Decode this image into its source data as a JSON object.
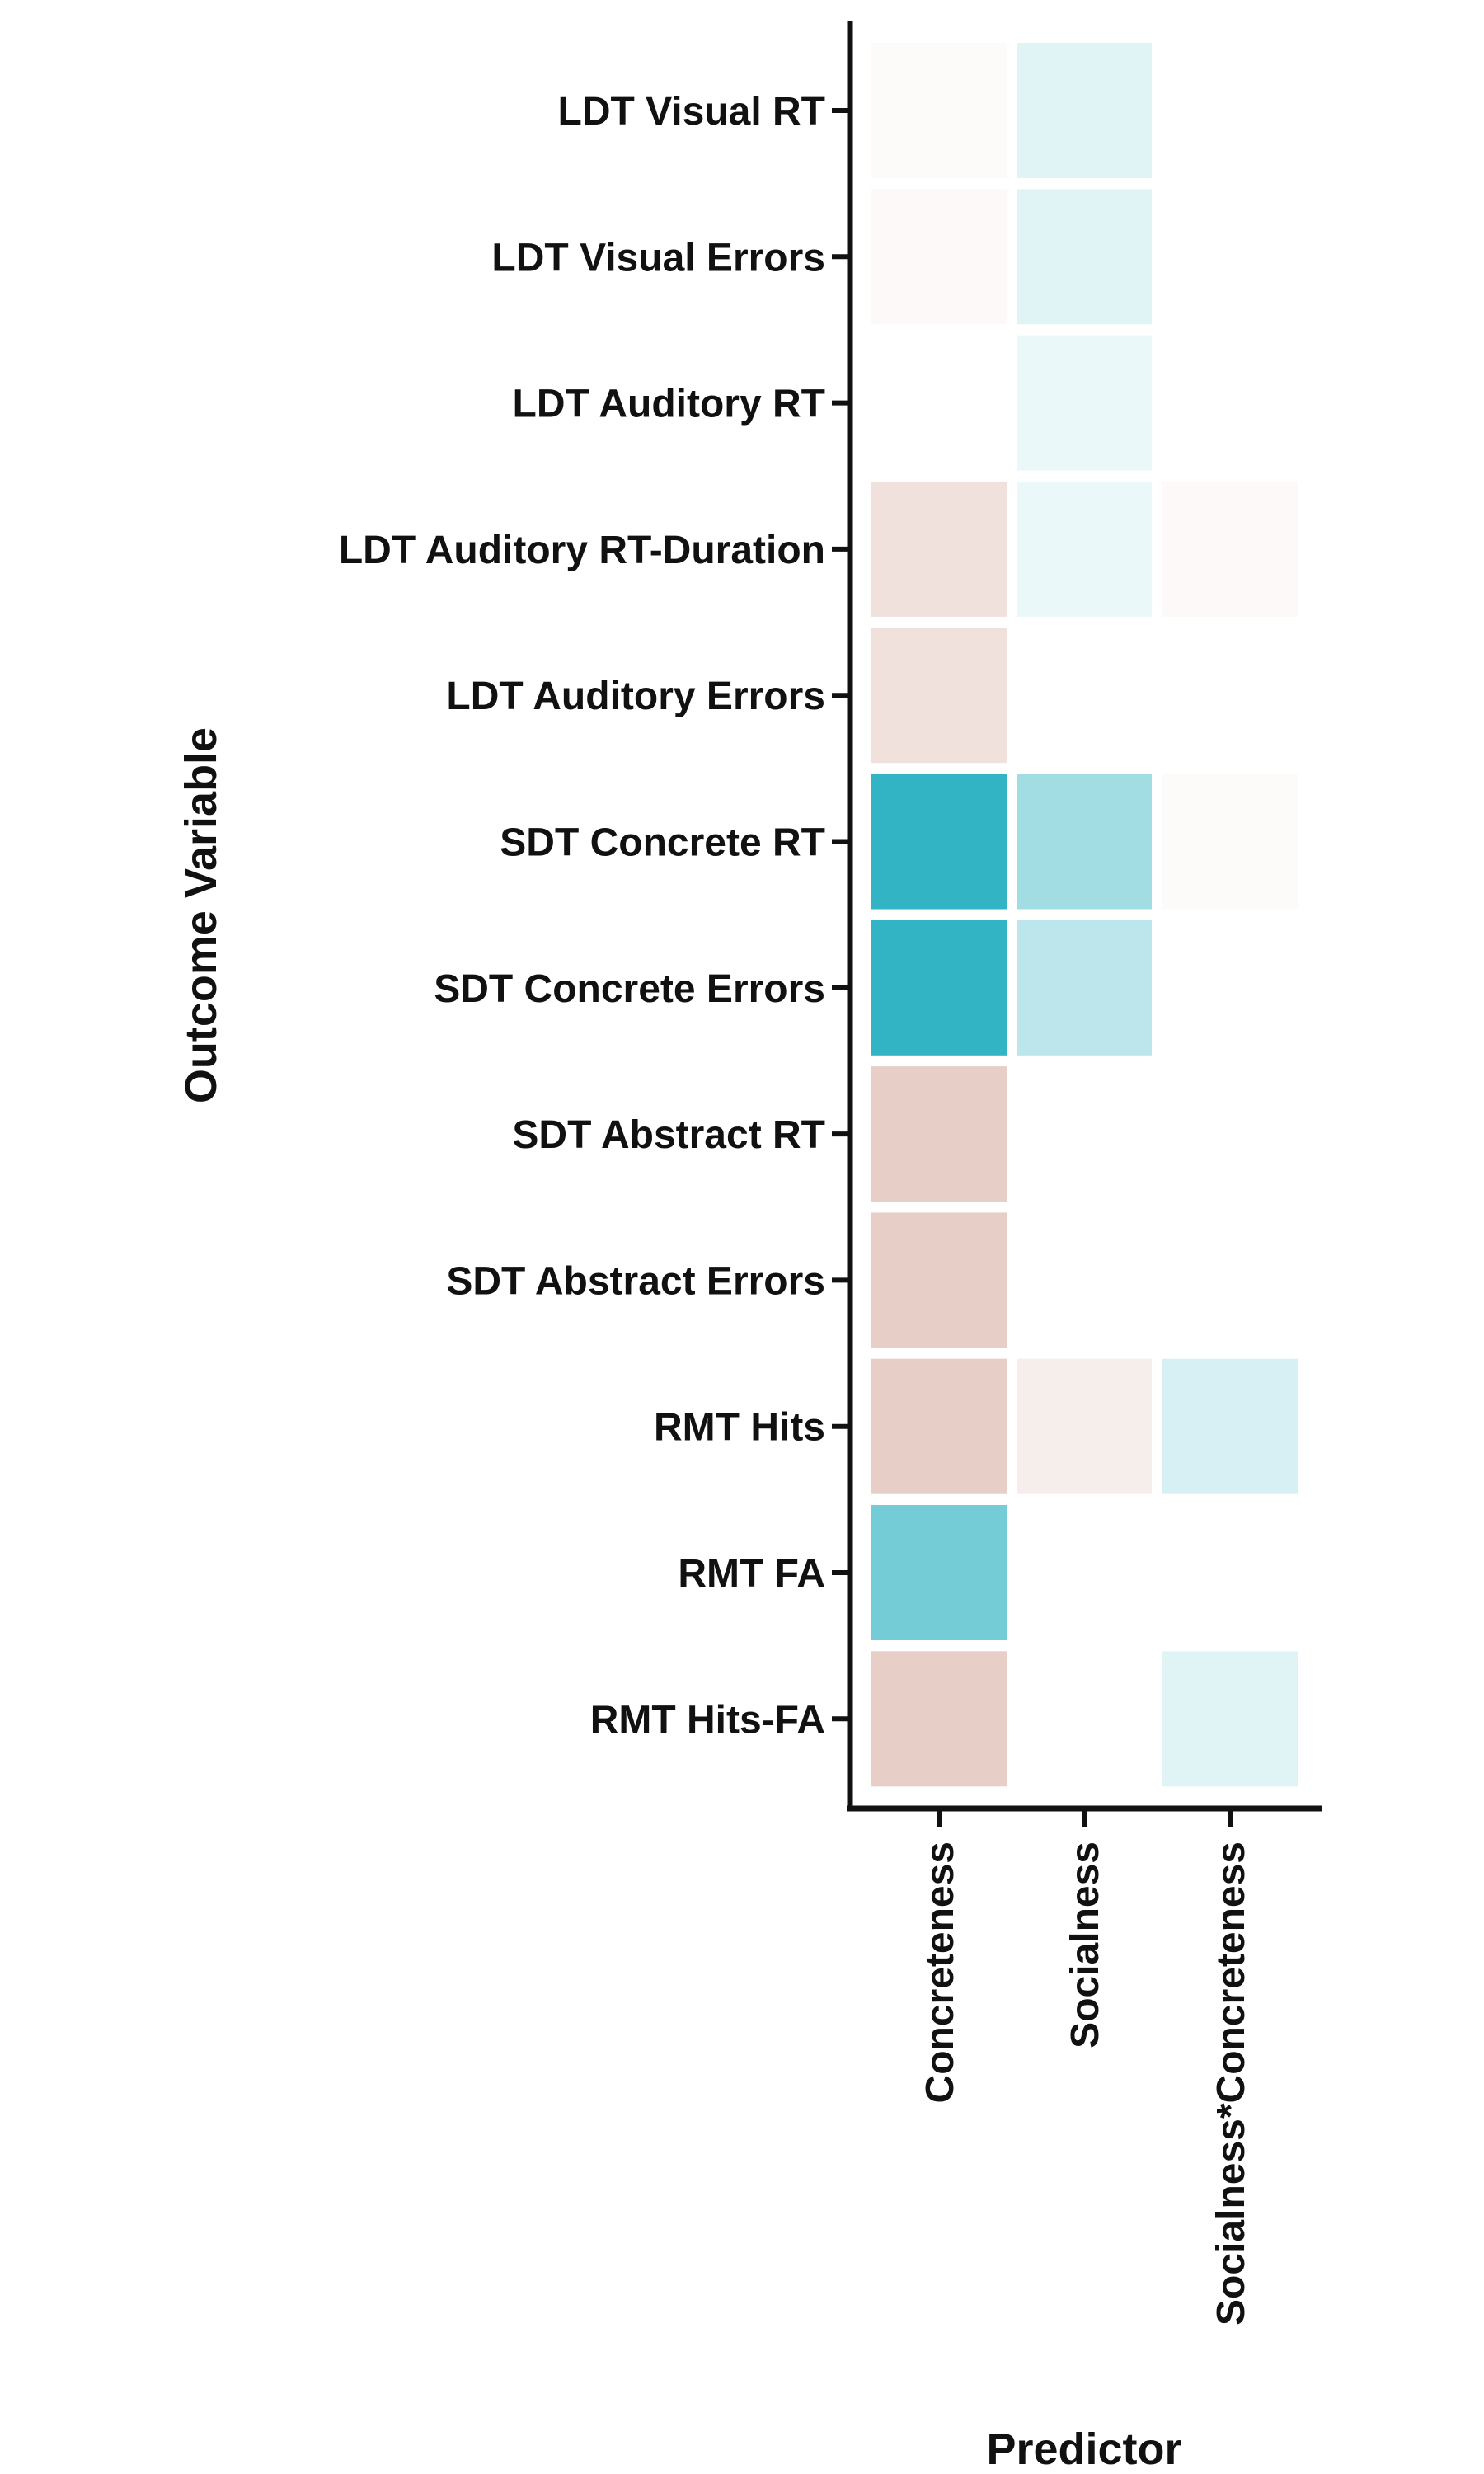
{
  "chart_data": {
    "type": "heatmap",
    "title": "",
    "xlabel": "Predictor",
    "ylabel": "Outcome Variable",
    "x_categories": [
      "Concreteness",
      "Socialness",
      "Socialness*Concreteness"
    ],
    "y_categories": [
      "LDT Visual RT",
      "LDT Visual Errors",
      "LDT Auditory RT",
      "LDT Auditory RT-Duration",
      "LDT Auditory Errors",
      "SDT Concrete RT",
      "SDT Concrete Errors",
      "SDT Abstract RT",
      "SDT Abstract Errors",
      "RMT Hits",
      "RMT FA",
      "RMT Hits-FA"
    ],
    "values": [
      [
        0.05,
        -0.15,
        null
      ],
      [
        0.07,
        -0.15,
        null
      ],
      [
        null,
        -0.1,
        null
      ],
      [
        0.35,
        -0.1,
        0.07
      ],
      [
        0.35,
        null,
        null
      ],
      [
        -1.0,
        -0.45,
        0.05
      ],
      [
        -1.0,
        -0.33,
        null
      ],
      [
        0.55,
        null,
        null
      ],
      [
        0.55,
        null,
        null
      ],
      [
        0.55,
        0.2,
        -0.2
      ],
      [
        -0.68,
        null,
        null
      ],
      [
        0.55,
        null,
        -0.15
      ]
    ],
    "color_scale": {
      "positive": "#d4a89b",
      "negative": "#33b4c4",
      "neutral": "#ffffff"
    },
    "grid": false,
    "legend": "none"
  }
}
